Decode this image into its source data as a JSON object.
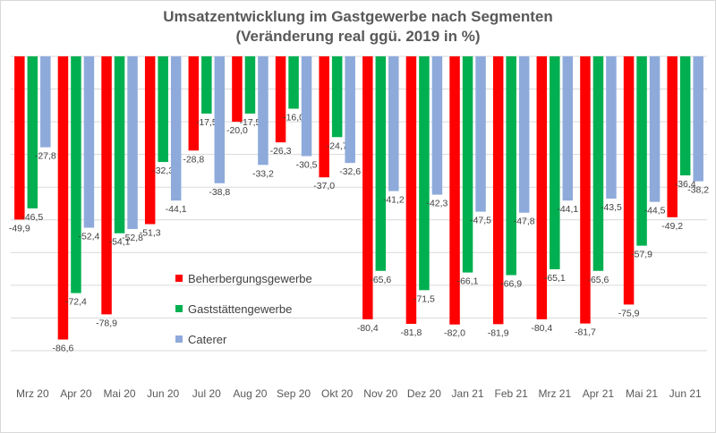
{
  "chart_data": {
    "type": "bar",
    "title": "Umsatzentwicklung  im Gastgewerbe nach Segmenten",
    "subtitle": "(Veränderung real ggü. 2019 in %)",
    "xlabel": "",
    "ylabel": "",
    "ylim": [
      -90,
      0
    ],
    "grid": true,
    "legend_position": "center-left",
    "categories": [
      "Mrz 20",
      "Apr 20",
      "Mai 20",
      "Jun 20",
      "Jul 20",
      "Aug 20",
      "Sep 20",
      "Okt 20",
      "Nov 20",
      "Dez 20",
      "Jan 21",
      "Feb 21",
      "Mrz 21",
      "Apr 21",
      "Mai 21",
      "Jun 21"
    ],
    "series": [
      {
        "name": "Beherbergungsgewerbe",
        "color": "#ff0000",
        "values": [
          -49.9,
          -86.6,
          -78.9,
          -51.3,
          -28.8,
          -20.0,
          -26.3,
          -37.0,
          -80.4,
          -81.8,
          -82.0,
          -81.9,
          -80.4,
          -81.7,
          -75.9,
          -49.2
        ],
        "labels": [
          "-49,9",
          "-86,6",
          "-78,9",
          "-51,3",
          "-28,8",
          "-20,0",
          "-26,3",
          "-37,0",
          "-80,4",
          "-81,8",
          "-82,0",
          "-81,9",
          "-80,4",
          "-81,7",
          "-75,9",
          "-49,2"
        ]
      },
      {
        "name": "Gaststättengewerbe",
        "color": "#00b050",
        "values": [
          -46.5,
          -72.4,
          -54.1,
          -32.3,
          -17.5,
          -17.5,
          -16.0,
          -24.7,
          -65.6,
          -71.5,
          -66.1,
          -66.9,
          -65.1,
          -65.6,
          -57.9,
          -36.4
        ],
        "labels": [
          "-46,5",
          "-72,4",
          "-54,1",
          "-32,3",
          "-17,5",
          "-17,5",
          "-16,0",
          "-24,7",
          "-65,6",
          "-71,5",
          "-66,1",
          "-66,9",
          "-65,1",
          "-65,6",
          "-57,9",
          "-36,4"
        ]
      },
      {
        "name": "Caterer",
        "color": "#8eaadb",
        "values": [
          -27.8,
          -52.4,
          -52.8,
          -44.1,
          -38.8,
          -33.2,
          -30.5,
          -32.6,
          -41.2,
          -42.3,
          -47.5,
          -47.8,
          -44.1,
          -43.5,
          -44.5,
          -38.2
        ],
        "labels": [
          "-27,8",
          "-52,4",
          "-52,8",
          "-44,1",
          "-38,8",
          "-33,2",
          "-30,5",
          "-32,6",
          "-41,2",
          "-42,3",
          "-47,5",
          "-47,8",
          "-44,1",
          "-43,5",
          "-44,5",
          "-38,2"
        ]
      }
    ]
  }
}
